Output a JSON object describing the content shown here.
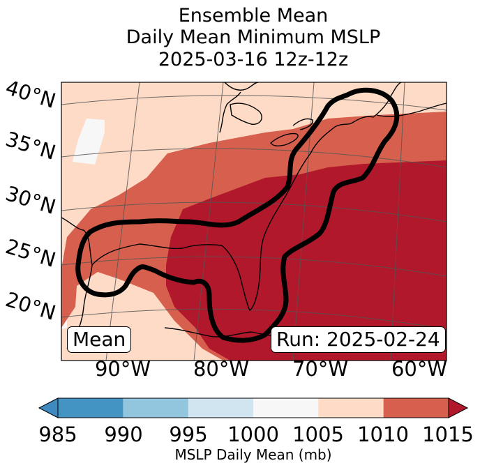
{
  "title": {
    "line1": "Ensemble Mean",
    "line2": "Daily Mean Minimum MSLP",
    "line3": "2025-03-16 12z-12z"
  },
  "map": {
    "lat_labels": [
      "40°N",
      "35°N",
      "30°N",
      "25°N",
      "20°N"
    ],
    "lon_labels": [
      "90°W",
      "80°W",
      "70°W",
      "60°W"
    ],
    "mean_box": "Mean",
    "run_box": "Run: 2025-02-24",
    "features": {
      "contour": "ensemble-mean-pressure-contour",
      "coastline": "coastline",
      "gridlines": "lat-lon-gridlines"
    }
  },
  "colorbar": {
    "label": "MSLP Daily Mean (mb)",
    "ticks": [
      "985",
      "990",
      "995",
      "1000",
      "1005",
      "1010",
      "1015"
    ],
    "colors": [
      "#2166ac",
      "#4393c3",
      "#92c5de",
      "#d1e5f0",
      "#f7f7f7",
      "#fddbc7",
      "#d6604d",
      "#b2182b",
      "#67001f"
    ],
    "bins": [
      {
        "range": "985-990",
        "color": "#4393c3"
      },
      {
        "range": "990-995",
        "color": "#92c5de"
      },
      {
        "range": "995-1000",
        "color": "#d1e5f0"
      },
      {
        "range": "1000-1005",
        "color": "#f7f7f7"
      },
      {
        "range": "1005-1010",
        "color": "#fddbc7"
      },
      {
        "range": "1010-1015",
        "color": "#d6604d"
      }
    ],
    "extend_low_color": "#3d89c0",
    "extend_high_color": "#b2182b"
  }
}
